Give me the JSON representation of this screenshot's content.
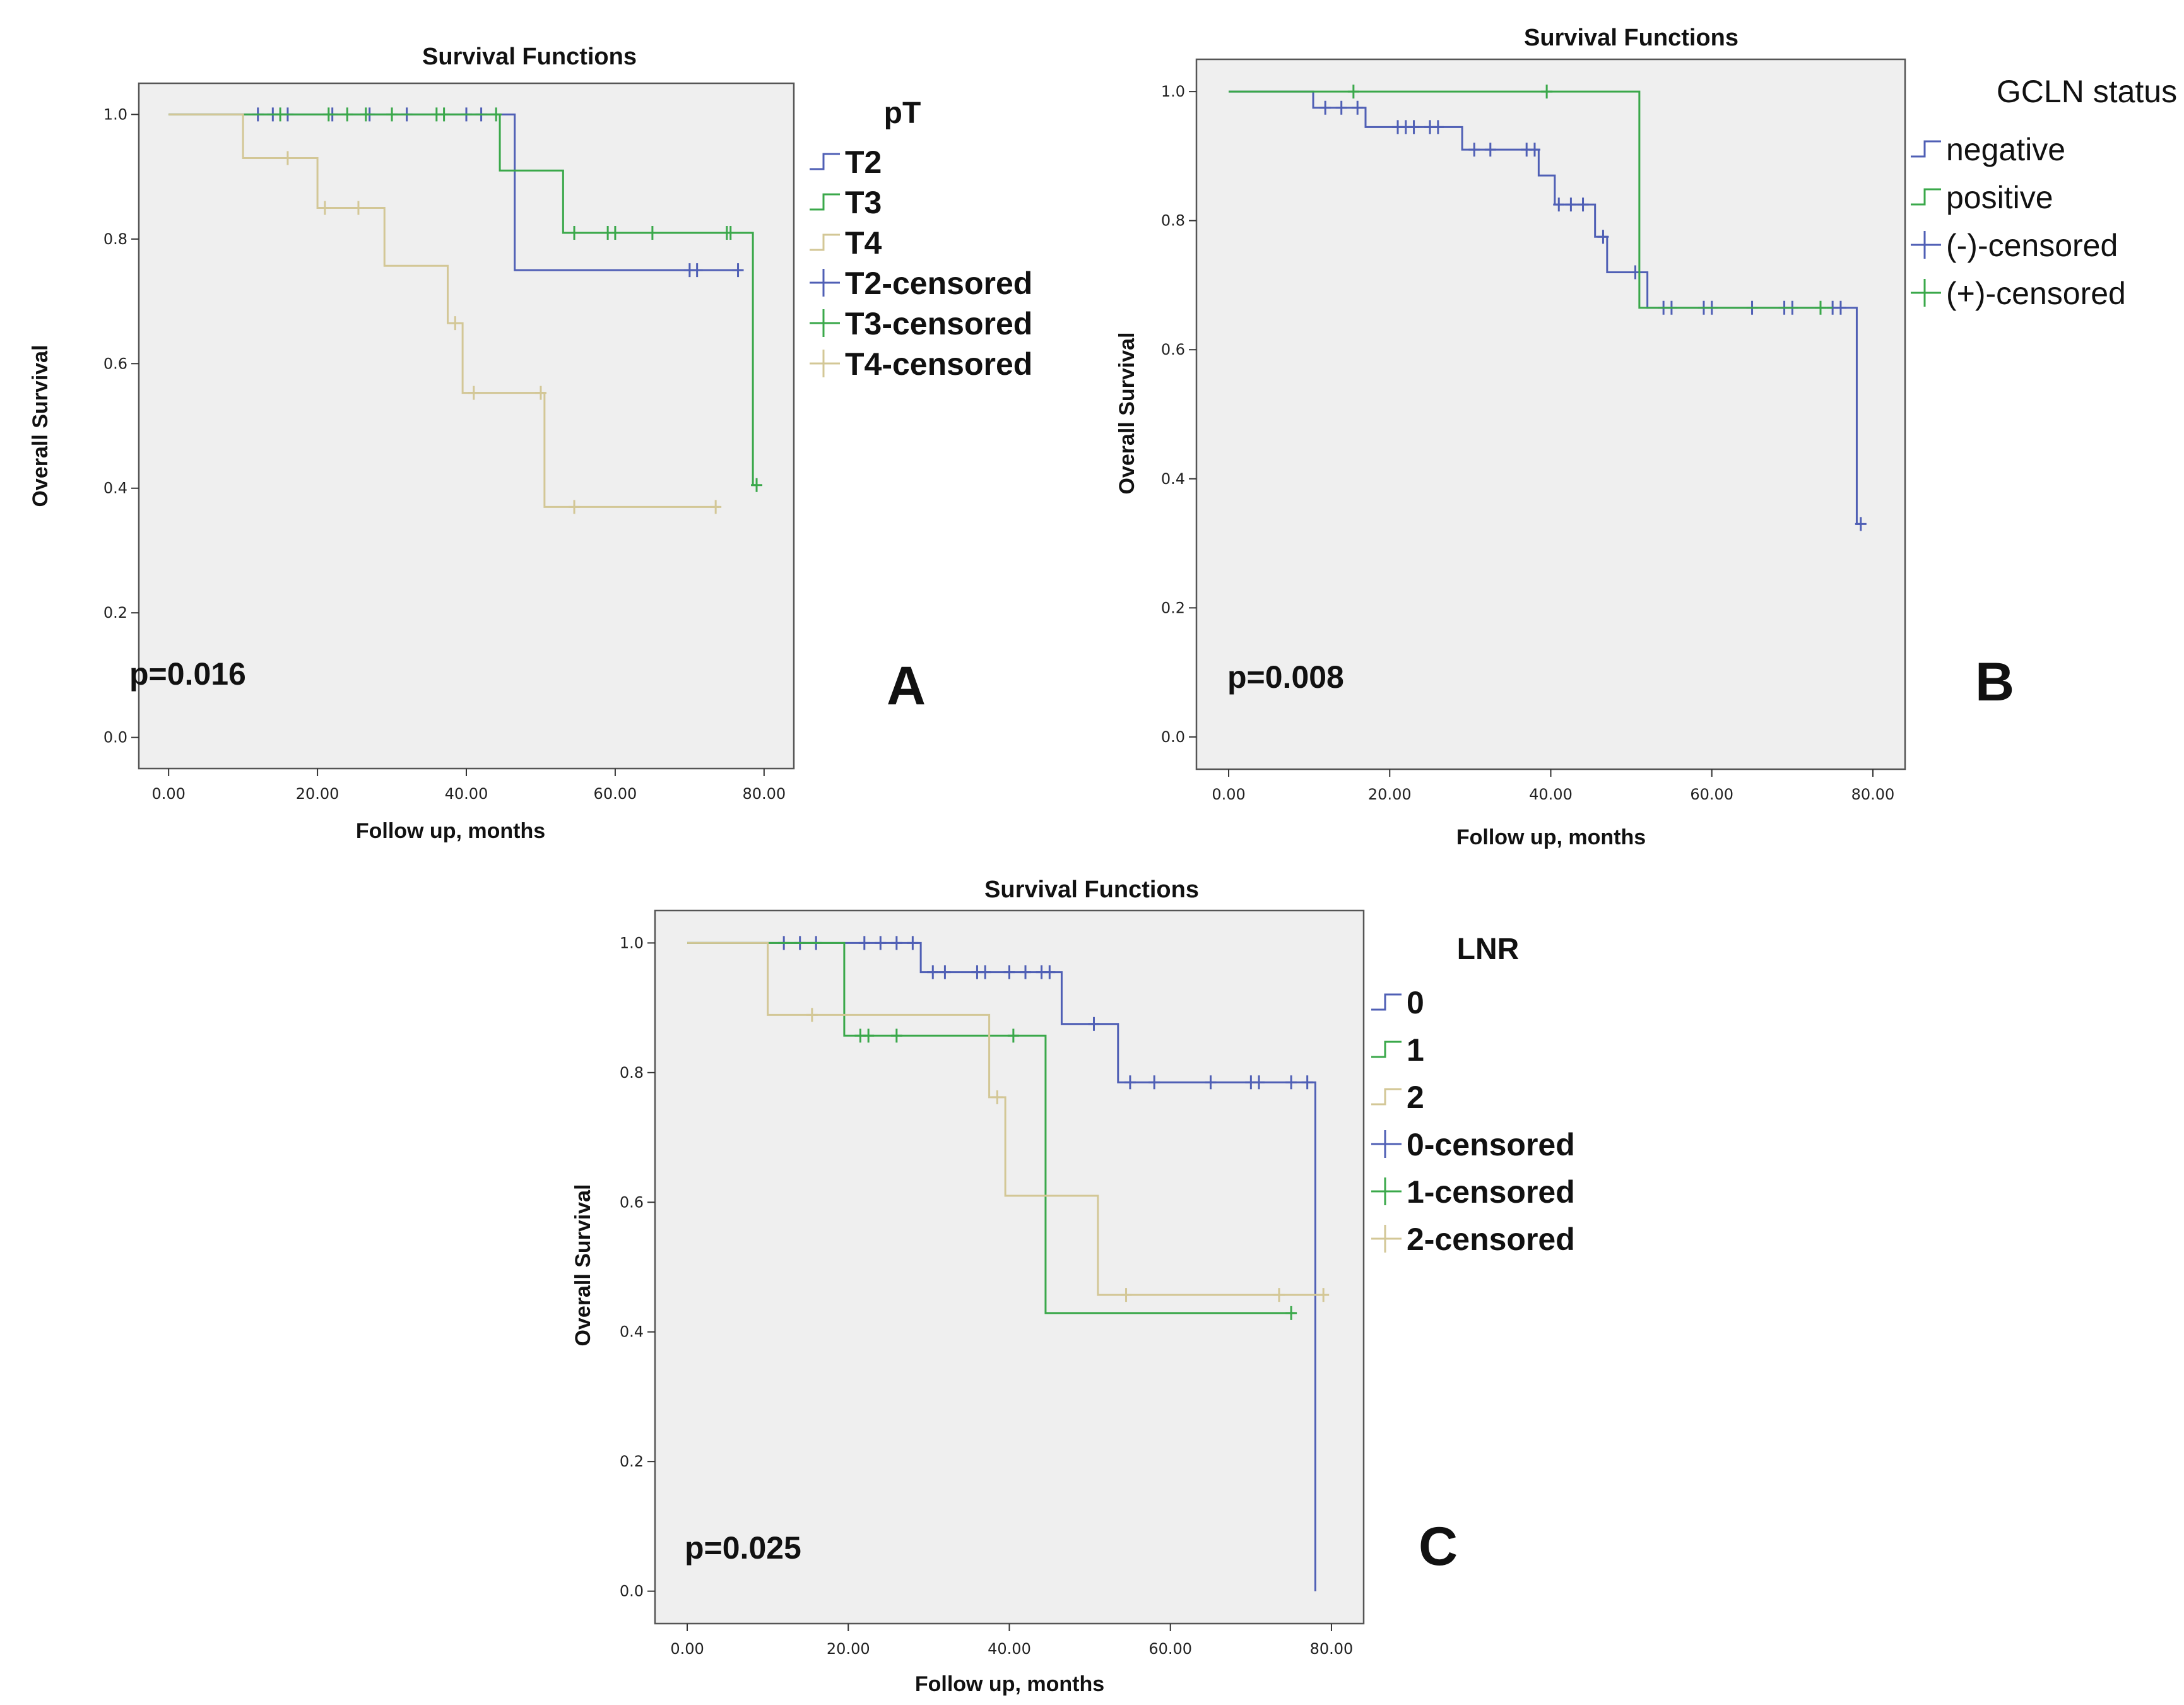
{
  "chart_data": [
    {
      "panel_letter": "A",
      "type": "line",
      "title": "Survival Functions",
      "xlabel": "Follow up, months",
      "ylabel": "Overall Survival",
      "xlim": [
        0,
        80
      ],
      "ylim": [
        0,
        1.0
      ],
      "x_ticks": [
        "0.00",
        "20.00",
        "40.00",
        "60.00",
        "80.00"
      ],
      "y_ticks": [
        "0.0",
        "0.2",
        "0.4",
        "0.6",
        "0.8",
        "1.0"
      ],
      "p_value": "p=0.016",
      "legend_title": "pT",
      "legend_style": "bold",
      "legend_labels": [
        "T2",
        "T3",
        "T4",
        "T2-censored",
        "T3-censored",
        "T4-censored"
      ],
      "series": [
        {
          "name": "T2",
          "color": "#4f5fb5",
          "steps": [
            [
              0,
              1.0
            ],
            [
              46.5,
              0.75
            ],
            [
              77,
              0.75
            ]
          ],
          "censored": [
            [
              12,
              1.0
            ],
            [
              14,
              1.0
            ],
            [
              16,
              1.0
            ],
            [
              22,
              1.0
            ],
            [
              27,
              1.0
            ],
            [
              32,
              1.0
            ],
            [
              40,
              1.0
            ],
            [
              42,
              1.0
            ],
            [
              70,
              0.75
            ],
            [
              71,
              0.75
            ],
            [
              76.5,
              0.75
            ]
          ]
        },
        {
          "name": "T3",
          "color": "#3aa84a",
          "steps": [
            [
              0,
              1.0
            ],
            [
              44.5,
              0.91
            ],
            [
              53,
              0.81
            ],
            [
              78.5,
              0.405
            ],
            [
              79,
              0.405
            ]
          ],
          "censored": [
            [
              15,
              1.0
            ],
            [
              21.5,
              1.0
            ],
            [
              24,
              1.0
            ],
            [
              26.5,
              1.0
            ],
            [
              30,
              1.0
            ],
            [
              36,
              1.0
            ],
            [
              37,
              1.0
            ],
            [
              44,
              1.0
            ],
            [
              54.5,
              0.81
            ],
            [
              59,
              0.81
            ],
            [
              60,
              0.81
            ],
            [
              65,
              0.81
            ],
            [
              75,
              0.81
            ],
            [
              75.5,
              0.81
            ],
            [
              79,
              0.405
            ]
          ]
        },
        {
          "name": "T4",
          "color": "#d3c796",
          "steps": [
            [
              0,
              1.0
            ],
            [
              10,
              0.93
            ],
            [
              20,
              0.85
            ],
            [
              29,
              0.757
            ],
            [
              37.5,
              0.665
            ],
            [
              39.5,
              0.553
            ],
            [
              50.5,
              0.37
            ],
            [
              74,
              0.37
            ]
          ],
          "censored": [
            [
              16,
              0.93
            ],
            [
              21,
              0.85
            ],
            [
              25.5,
              0.85
            ],
            [
              38.5,
              0.665
            ],
            [
              41,
              0.553
            ],
            [
              50,
              0.553
            ],
            [
              54.5,
              0.37
            ],
            [
              73.5,
              0.37
            ]
          ]
        }
      ]
    },
    {
      "panel_letter": "B",
      "type": "line",
      "title": "Survival Functions",
      "xlabel": "Follow up, months",
      "ylabel": "Overall Survival",
      "xlim": [
        0,
        80
      ],
      "ylim": [
        0,
        1.0
      ],
      "x_ticks": [
        "0.00",
        "20.00",
        "40.00",
        "60.00",
        "80.00"
      ],
      "y_ticks": [
        "0.0",
        "0.2",
        "0.4",
        "0.6",
        "0.8",
        "1.0"
      ],
      "p_value": "p=0.008",
      "legend_title": "GCLN status",
      "legend_style": "plain",
      "legend_labels": [
        "negative",
        "positive",
        "(-)-censored",
        "(+)-censored"
      ],
      "series": [
        {
          "name": "negative",
          "color": "#4f5fb5",
          "steps": [
            [
              0,
              1.0
            ],
            [
              10.5,
              0.975
            ],
            [
              17,
              0.945
            ],
            [
              29,
              0.91
            ],
            [
              38.5,
              0.87
            ],
            [
              40.5,
              0.825
            ],
            [
              45.5,
              0.775
            ],
            [
              47,
              0.72
            ],
            [
              52,
              0.665
            ],
            [
              78,
              0.33
            ],
            [
              78.5,
              0.33
            ]
          ],
          "censored": [
            [
              12,
              0.975
            ],
            [
              14,
              0.975
            ],
            [
              16,
              0.975
            ],
            [
              21,
              0.945
            ],
            [
              22,
              0.945
            ],
            [
              23,
              0.945
            ],
            [
              25,
              0.945
            ],
            [
              26,
              0.945
            ],
            [
              30.5,
              0.91
            ],
            [
              32.5,
              0.91
            ],
            [
              37,
              0.91
            ],
            [
              38,
              0.91
            ],
            [
              41,
              0.825
            ],
            [
              42.5,
              0.825
            ],
            [
              44,
              0.825
            ],
            [
              46.5,
              0.775
            ],
            [
              50.5,
              0.72
            ],
            [
              54,
              0.665
            ],
            [
              55,
              0.665
            ],
            [
              59,
              0.665
            ],
            [
              60,
              0.665
            ],
            [
              65,
              0.665
            ],
            [
              69,
              0.665
            ],
            [
              70,
              0.665
            ],
            [
              75,
              0.665
            ],
            [
              76,
              0.665
            ],
            [
              78.5,
              0.33
            ]
          ]
        },
        {
          "name": "positive",
          "color": "#3aa84a",
          "steps": [
            [
              0,
              1.0
            ],
            [
              51,
              0.665
            ],
            [
              75,
              0.665
            ]
          ],
          "censored": [
            [
              15.5,
              1.0
            ],
            [
              39.5,
              1.0
            ],
            [
              73.5,
              0.665
            ]
          ]
        }
      ]
    },
    {
      "panel_letter": "C",
      "type": "line",
      "title": "Survival Functions",
      "xlabel": "Follow up, months",
      "ylabel": "Overall Survival",
      "xlim": [
        0,
        80
      ],
      "ylim": [
        0,
        1.0
      ],
      "x_ticks": [
        "0.00",
        "20.00",
        "40.00",
        "60.00",
        "80.00"
      ],
      "y_ticks": [
        "0.0",
        "0.2",
        "0.4",
        "0.6",
        "0.8",
        "1.0"
      ],
      "p_value": "p=0.025",
      "legend_title": "LNR",
      "legend_style": "bold",
      "legend_labels": [
        "0",
        "1",
        "2",
        "0-censored",
        "1-censored",
        "2-censored"
      ],
      "series": [
        {
          "name": "0",
          "color": "#4f5fb5",
          "steps": [
            [
              0,
              1.0
            ],
            [
              29,
              0.955
            ],
            [
              46.5,
              0.875
            ],
            [
              53.5,
              0.785
            ],
            [
              78,
              0.0
            ]
          ],
          "censored": [
            [
              12,
              1.0
            ],
            [
              14,
              1.0
            ],
            [
              16,
              1.0
            ],
            [
              22,
              1.0
            ],
            [
              24,
              1.0
            ],
            [
              26,
              1.0
            ],
            [
              28,
              1.0
            ],
            [
              30.5,
              0.955
            ],
            [
              32,
              0.955
            ],
            [
              36,
              0.955
            ],
            [
              37,
              0.955
            ],
            [
              40,
              0.955
            ],
            [
              42,
              0.955
            ],
            [
              44,
              0.955
            ],
            [
              45,
              0.955
            ],
            [
              50.5,
              0.875
            ],
            [
              55,
              0.785
            ],
            [
              58,
              0.785
            ],
            [
              65,
              0.785
            ],
            [
              70,
              0.785
            ],
            [
              71,
              0.785
            ],
            [
              75,
              0.785
            ],
            [
              77,
              0.785
            ]
          ]
        },
        {
          "name": "1",
          "color": "#3aa84a",
          "steps": [
            [
              0,
              1.0
            ],
            [
              19.5,
              0.857
            ],
            [
              44.5,
              0.429
            ],
            [
              75.5,
              0.429
            ]
          ],
          "censored": [
            [
              21.5,
              0.857
            ],
            [
              22.5,
              0.857
            ],
            [
              26,
              0.857
            ],
            [
              40.5,
              0.857
            ],
            [
              75,
              0.429
            ]
          ]
        },
        {
          "name": "2",
          "color": "#d3c796",
          "steps": [
            [
              0,
              1.0
            ],
            [
              10,
              0.889
            ],
            [
              37.5,
              0.762
            ],
            [
              39.5,
              0.61
            ],
            [
              51,
              0.457
            ],
            [
              79,
              0.457
            ]
          ],
          "censored": [
            [
              15.5,
              0.889
            ],
            [
              38.5,
              0.762
            ],
            [
              54.5,
              0.457
            ],
            [
              73.5,
              0.457
            ],
            [
              79,
              0.457
            ]
          ]
        }
      ]
    }
  ]
}
